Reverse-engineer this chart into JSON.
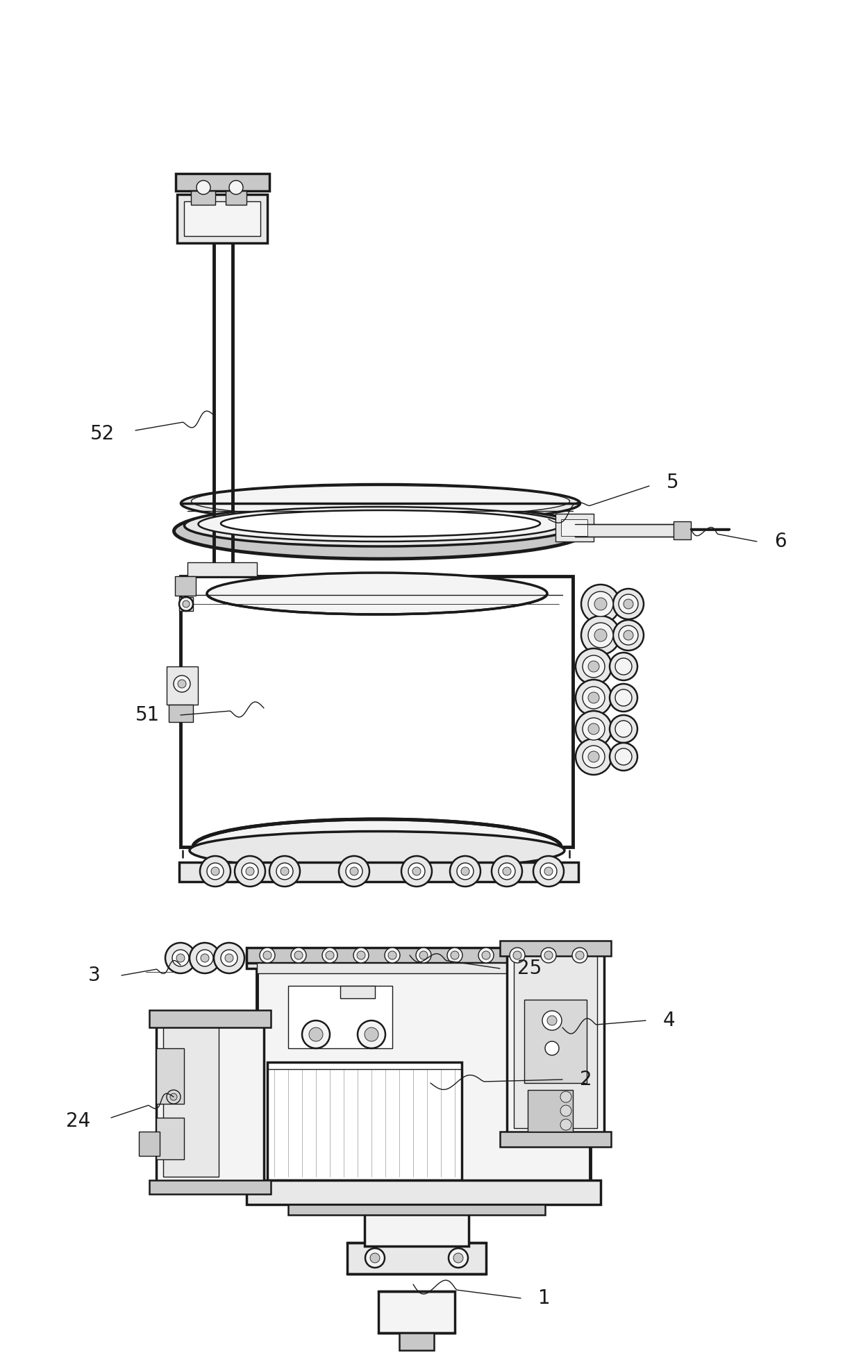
{
  "bg_color": "#ffffff",
  "line_color": "#1a1a1a",
  "figure_width": 12.4,
  "figure_height": 19.59,
  "dpi": 100,
  "label_fontsize": 20,
  "lw_ultra": 3.5,
  "lw_thick": 2.5,
  "lw_med": 1.8,
  "lw_thin": 1.0,
  "lw_hair": 0.6,
  "gray_fill": "#e8e8e8",
  "light_fill": "#f4f4f4",
  "white_fill": "#ffffff",
  "dark_fill": "#c8c8c8",
  "mid_fill": "#d8d8d8"
}
